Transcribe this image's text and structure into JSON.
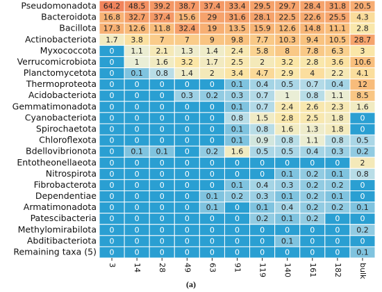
{
  "chart_data": {
    "type": "heatmap",
    "categories": [
      "3",
      "14",
      "28",
      "49",
      "63",
      "91",
      "119",
      "140",
      "161",
      "182",
      "bulk"
    ],
    "rows": [
      "Pseudomonadota",
      "Bacteroidota",
      "Bacillota",
      "Actinobacteriota",
      "Myxococcota",
      "Verrucomicrobiota",
      "Planctomycetota",
      "Thermoproteota",
      "Acidobacteriota",
      "Gemmatimonadota",
      "Cyanobacteriota",
      "Spirochaetota",
      "Chloroflexota",
      "Bdellovibrionota",
      "Entotheonellaeota",
      "Nitrospirota",
      "Fibrobacterota",
      "Dependentiae",
      "Armatimonadota",
      "Patescibacteria",
      "Methylomirabilota",
      "Abditibacteriota",
      "Remaining taxa (5)"
    ],
    "values": [
      [
        64.2,
        48.5,
        39.2,
        38.7,
        37.4,
        33.4,
        29.5,
        29.7,
        28.4,
        31.8,
        20.5
      ],
      [
        16.8,
        32.7,
        37.4,
        15.6,
        29,
        31.6,
        28.1,
        22.5,
        22.6,
        25.5,
        4.3
      ],
      [
        17.3,
        12.6,
        11.8,
        32.4,
        19,
        13.5,
        15.9,
        12.6,
        14.8,
        11.1,
        2.8
      ],
      [
        1.7,
        3.8,
        7,
        7,
        9,
        9.8,
        7.7,
        10.3,
        9.4,
        10.5,
        28.7
      ],
      [
        0,
        1.1,
        2.1,
        1.3,
        1.4,
        2.4,
        5.8,
        8,
        7.8,
        6.3,
        3
      ],
      [
        0,
        1,
        1.6,
        3.2,
        1.7,
        2.5,
        2,
        3.2,
        2.8,
        3.6,
        10.6
      ],
      [
        0,
        0.1,
        0.8,
        1.4,
        2,
        3.4,
        4.7,
        2.9,
        4,
        2.2,
        4.1
      ],
      [
        0,
        0,
        0,
        0,
        0,
        0.1,
        0.4,
        0.5,
        0.7,
        0.4,
        12
      ],
      [
        0,
        0,
        0,
        0.3,
        0.2,
        0.3,
        0.7,
        1,
        0.8,
        1.1,
        8.5
      ],
      [
        0,
        0,
        0,
        0,
        0,
        0.1,
        0.7,
        2.4,
        2.6,
        2.3,
        1.6
      ],
      [
        0,
        0,
        0,
        0,
        0,
        0.8,
        1.5,
        2.8,
        2.5,
        1.8,
        0
      ],
      [
        0,
        0,
        0,
        0,
        0,
        0.1,
        0.8,
        1.6,
        1.3,
        1.8,
        0
      ],
      [
        0,
        0,
        0,
        0,
        0,
        0.1,
        0.9,
        0.8,
        1.1,
        0.8,
        0.5
      ],
      [
        0,
        0.1,
        0.1,
        0,
        0.2,
        1.6,
        0.5,
        0.5,
        0.4,
        0.3,
        0.2
      ],
      [
        0,
        0,
        0,
        0,
        0,
        0,
        0,
        0,
        0,
        0,
        2
      ],
      [
        0,
        0,
        0,
        0,
        0,
        0,
        0,
        0.1,
        0.2,
        0.1,
        0.8
      ],
      [
        0,
        0,
        0,
        0,
        0,
        0.1,
        0.4,
        0.3,
        0.2,
        0.2,
        0
      ],
      [
        0,
        0,
        0,
        0,
        0.1,
        0.2,
        0.3,
        0.1,
        0.2,
        0.1,
        0
      ],
      [
        0,
        0,
        0,
        0,
        0.1,
        0,
        0.1,
        0.4,
        0.2,
        0.2,
        0.1
      ],
      [
        0,
        0,
        0,
        0,
        0,
        0,
        0.2,
        0.1,
        0.2,
        0,
        0
      ],
      [
        0,
        0,
        0,
        0,
        0,
        0,
        0,
        0,
        0,
        0,
        0.2
      ],
      [
        0,
        0,
        0,
        0,
        0,
        0,
        0,
        0.1,
        0,
        0,
        0
      ],
      [
        0,
        0,
        0,
        0,
        0,
        0,
        0,
        0,
        0,
        0,
        0.1
      ]
    ],
    "caption": "(a)"
  }
}
